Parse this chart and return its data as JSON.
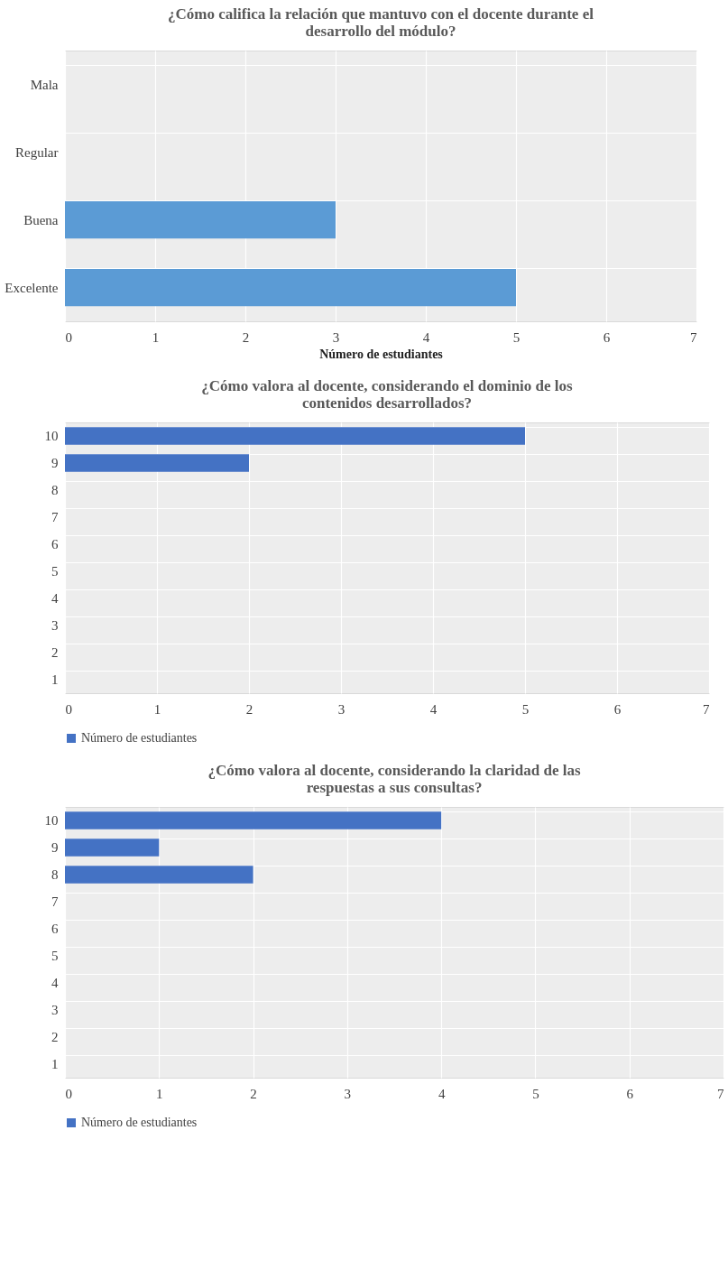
{
  "chart_data": [
    {
      "type": "bar",
      "orientation": "horizontal",
      "title": "¿Cómo califica la relación que mantuvo con el docente durante el desarrollo del módulo?",
      "xlabel": "Número de estudiantes",
      "categories": [
        "Mala",
        "Regular",
        "Buena",
        "Excelente"
      ],
      "series": [
        {
          "color": "#5b9bd5",
          "values": [
            0,
            0,
            3,
            5
          ]
        }
      ],
      "xlim": [
        0,
        7
      ],
      "xticks": [
        0,
        1,
        2,
        3,
        4,
        5,
        6,
        7
      ],
      "grid": true,
      "legend": false
    },
    {
      "type": "bar",
      "orientation": "horizontal",
      "title": "¿Cómo valora al docente, considerando el dominio de los contenidos desarrollados?",
      "categories": [
        "10",
        "9",
        "8",
        "7",
        "6",
        "5",
        "4",
        "3",
        "2",
        "1"
      ],
      "series": [
        {
          "name": "Número de estudiantes",
          "color": "#4472c4",
          "values": [
            5,
            2,
            0,
            0,
            0,
            0,
            0,
            0,
            0,
            0
          ]
        }
      ],
      "xlim": [
        0,
        7
      ],
      "xticks": [
        0,
        1,
        2,
        3,
        4,
        5,
        6,
        7
      ],
      "grid": true,
      "legend": "bottom"
    },
    {
      "type": "bar",
      "orientation": "horizontal",
      "title": "¿Cómo valora al docente, considerando la claridad de las respuestas a sus consultas?",
      "categories": [
        "10",
        "9",
        "8",
        "7",
        "6",
        "5",
        "4",
        "3",
        "2",
        "1"
      ],
      "series": [
        {
          "name": "Número de estudiantes",
          "color": "#4472c4",
          "values": [
            4,
            1,
            2,
            0,
            0,
            0,
            0,
            0,
            0,
            0
          ]
        }
      ],
      "xlim": [
        0,
        7
      ],
      "xticks": [
        0,
        1,
        2,
        3,
        4,
        5,
        6,
        7
      ],
      "grid": true,
      "legend": "bottom"
    }
  ]
}
